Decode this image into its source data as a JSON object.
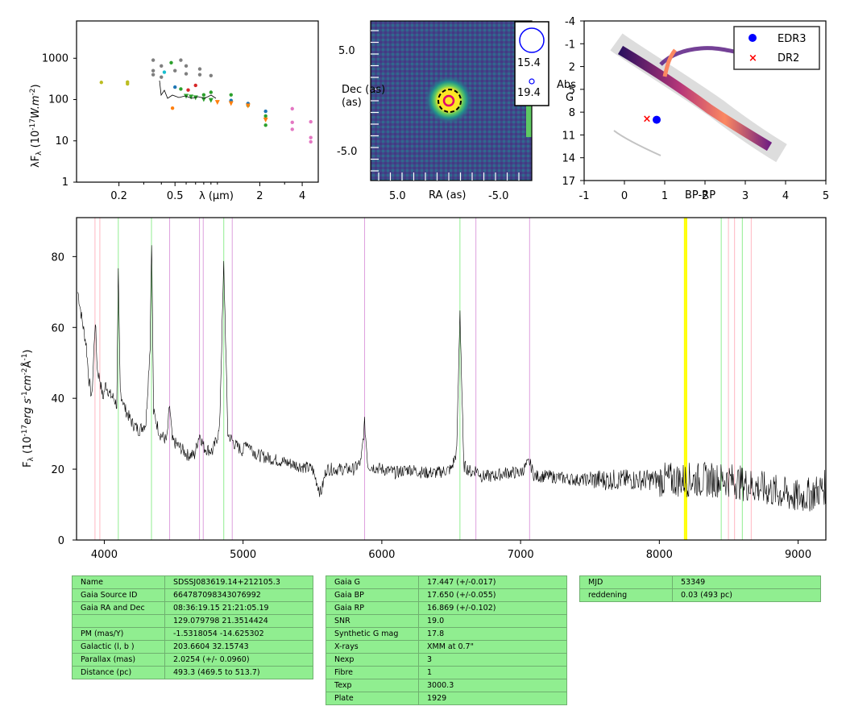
{
  "sed": {
    "ylabel": "λF_λ (10^-17 W.m^-2)",
    "xlabel": "λ (µm)",
    "yticks": [
      "1",
      "10",
      "100",
      "1000"
    ],
    "xticks": [
      "0.2",
      "0.5",
      "2",
      "4"
    ],
    "points": [
      {
        "x": 0.15,
        "y": 260,
        "c": "#bcbd22"
      },
      {
        "x": 0.23,
        "y": 240,
        "c": "#bcbd22"
      },
      {
        "x": 0.23,
        "y": 265,
        "c": "#bcbd22"
      },
      {
        "x": 0.35,
        "y": 900,
        "c": "#7f7f7f"
      },
      {
        "x": 0.35,
        "y": 500,
        "c": "#7f7f7f"
      },
      {
        "x": 0.35,
        "y": 400,
        "c": "#7f7f7f"
      },
      {
        "x": 0.4,
        "y": 650,
        "c": "#7f7f7f"
      },
      {
        "x": 0.4,
        "y": 350,
        "c": "#7f7f7f"
      },
      {
        "x": 0.42,
        "y": 460,
        "c": "#17becf"
      },
      {
        "x": 0.47,
        "y": 780,
        "c": "#2ca02c"
      },
      {
        "x": 0.5,
        "y": 500,
        "c": "#7f7f7f"
      },
      {
        "x": 0.5,
        "y": 200,
        "c": "#1f77b4"
      },
      {
        "x": 0.55,
        "y": 900,
        "c": "#7f7f7f"
      },
      {
        "x": 0.55,
        "y": 180,
        "c": "#2ca02c"
      },
      {
        "x": 0.6,
        "y": 650,
        "c": "#7f7f7f"
      },
      {
        "x": 0.6,
        "y": 420,
        "c": "#7f7f7f"
      },
      {
        "x": 0.62,
        "y": 170,
        "c": "#d62728"
      },
      {
        "x": 0.7,
        "y": 220,
        "c": "#d62728"
      },
      {
        "x": 0.75,
        "y": 550,
        "c": "#7f7f7f"
      },
      {
        "x": 0.75,
        "y": 400,
        "c": "#7f7f7f"
      },
      {
        "x": 0.8,
        "y": 130,
        "c": "#2ca02c"
      },
      {
        "x": 0.9,
        "y": 380,
        "c": "#7f7f7f"
      },
      {
        "x": 0.9,
        "y": 150,
        "c": "#2ca02c"
      },
      {
        "x": 0.48,
        "y": 62,
        "c": "#ff7f0e"
      },
      {
        "x": 1.25,
        "y": 130,
        "c": "#2ca02c"
      },
      {
        "x": 1.25,
        "y": 95,
        "c": "#1f77b4"
      },
      {
        "x": 1.65,
        "y": 80,
        "c": "#1f77b4"
      },
      {
        "x": 1.65,
        "y": 72,
        "c": "#2ca02c"
      },
      {
        "x": 2.2,
        "y": 52,
        "c": "#1f77b4"
      },
      {
        "x": 2.2,
        "y": 40,
        "c": "#2ca02c"
      },
      {
        "x": 2.2,
        "y": 24,
        "c": "#2ca02c"
      },
      {
        "x": 3.4,
        "y": 60,
        "c": "#e377c2"
      },
      {
        "x": 3.4,
        "y": 28,
        "c": "#e377c2"
      },
      {
        "x": 3.4,
        "y": 19,
        "c": "#e377c2"
      },
      {
        "x": 4.6,
        "y": 29,
        "c": "#e377c2"
      },
      {
        "x": 4.6,
        "y": 12,
        "c": "#e377c2"
      },
      {
        "x": 4.6,
        "y": 9.5,
        "c": "#e377c2"
      }
    ],
    "triangles": [
      {
        "x": 0.6,
        "y": 120,
        "c": "#2ca02c"
      },
      {
        "x": 0.65,
        "y": 115,
        "c": "#2ca02c"
      },
      {
        "x": 0.7,
        "y": 110,
        "c": "#2ca02c"
      },
      {
        "x": 0.8,
        "y": 100,
        "c": "#2ca02c"
      },
      {
        "x": 0.9,
        "y": 95,
        "c": "#2ca02c"
      },
      {
        "x": 1.0,
        "y": 85,
        "c": "#ff7f0e"
      },
      {
        "x": 1.25,
        "y": 80,
        "c": "#ff7f0e"
      },
      {
        "x": 1.65,
        "y": 70,
        "c": "#ff7f0e"
      },
      {
        "x": 2.2,
        "y": 32,
        "c": "#ff7f0e"
      }
    ]
  },
  "image": {
    "ylabel": "Dec\n(as)",
    "xlabel": "RA (as)",
    "yticks": [
      "5.0",
      "-5.0"
    ],
    "xticks": [
      "5.0",
      "-5.0"
    ],
    "legend_mags": [
      "15.4",
      "19.4"
    ]
  },
  "hr": {
    "xlabel": "BP-RP",
    "ylabel": "Abs\nG",
    "yticks": [
      "-4",
      "-1",
      "2",
      "5",
      "8",
      "11",
      "14",
      "17"
    ],
    "xticks": [
      "-1",
      "0",
      "1",
      "2",
      "3",
      "4",
      "5"
    ],
    "legend": [
      {
        "label": "EDR3",
        "color": "#0000ff"
      },
      {
        "label": "DR2",
        "color": "#ff0000"
      }
    ],
    "points": [
      {
        "name": "EDR3",
        "bp_rp": 0.8,
        "absg": 9.0,
        "color": "#0000ff"
      },
      {
        "name": "DR2",
        "bp_rp": 0.55,
        "absg": 8.8,
        "color": "#ff0000"
      }
    ]
  },
  "chart_data": {
    "type": "line",
    "xlabel": "",
    "ylabel": "F_λ (10^-17 erg s^-1 cm^-2 Å^-1)",
    "xlim": [
      3800,
      9200
    ],
    "ylim": [
      0,
      91
    ],
    "xticks": [
      "4000",
      "5000",
      "6000",
      "7000",
      "8000",
      "9000"
    ],
    "yticks": [
      "0",
      "20",
      "40",
      "60",
      "80"
    ],
    "series": [
      {
        "x": [
          3810,
          3840,
          3870,
          3890,
          3910,
          3935,
          3950,
          3970,
          3990,
          4010,
          4040,
          4070,
          4090,
          4101,
          4115,
          4150,
          4200,
          4250,
          4300,
          4330,
          4341,
          4355,
          4400,
          4450,
          4471,
          4490,
          4550,
          4600,
          4650,
          4686,
          4720,
          4780,
          4830,
          4861,
          4890,
          4940,
          5000,
          5020,
          5100,
          5200,
          5300,
          5400,
          5500,
          5560,
          5600,
          5700,
          5800,
          5850,
          5876,
          5900,
          6000,
          6100,
          6200,
          6300,
          6400,
          6500,
          6540,
          6563,
          6590,
          6650,
          6678,
          6720,
          6800,
          6900,
          7000,
          7065,
          7100,
          7200,
          7400,
          7600,
          7800,
          8000,
          8200,
          8400,
          8500,
          8600,
          8700,
          8800,
          8900,
          9000,
          9100,
          9200
        ],
        "y": [
          70,
          62,
          55,
          45,
          40,
          62,
          48,
          45,
          40,
          44,
          41,
          40,
          38,
          75,
          42,
          37,
          33,
          31,
          33,
          55,
          85,
          36,
          30,
          28,
          38,
          28,
          26,
          24,
          24,
          30,
          26,
          25,
          31,
          78,
          30,
          27,
          25,
          28,
          24,
          23,
          22,
          21,
          20,
          13,
          20,
          20,
          20,
          22,
          33,
          21,
          20,
          19,
          20,
          19,
          19,
          20,
          25,
          65,
          21,
          19,
          20,
          18,
          18,
          19,
          19,
          22,
          18,
          18,
          17,
          17,
          17,
          17,
          17,
          17,
          17,
          16,
          15,
          14,
          13,
          12,
          13,
          15
        ]
      }
    ],
    "lines": [
      {
        "x": 3933,
        "color": "#ffb6c1"
      },
      {
        "x": 3968,
        "color": "#ffb6c1"
      },
      {
        "x": 4101,
        "color": "#90ee90"
      },
      {
        "x": 4340,
        "color": "#90ee90"
      },
      {
        "x": 4471,
        "color": "#dda0dd"
      },
      {
        "x": 4686,
        "color": "#dda0dd"
      },
      {
        "x": 4713,
        "color": "#dda0dd"
      },
      {
        "x": 4861,
        "color": "#90ee90"
      },
      {
        "x": 4922,
        "color": "#dda0dd"
      },
      {
        "x": 5876,
        "color": "#dda0dd"
      },
      {
        "x": 6563,
        "color": "#90ee90"
      },
      {
        "x": 6678,
        "color": "#dda0dd"
      },
      {
        "x": 7065,
        "color": "#dda0dd"
      },
      {
        "x": 8183,
        "color": "#ffff00"
      },
      {
        "x": 8195,
        "color": "#ffff00"
      },
      {
        "x": 8446,
        "color": "#90ee90"
      },
      {
        "x": 8498,
        "color": "#ffb6c1"
      },
      {
        "x": 8542,
        "color": "#ffb6c1"
      },
      {
        "x": 8598,
        "color": "#90ee90"
      },
      {
        "x": 8662,
        "color": "#ffb6c1"
      }
    ]
  },
  "tables": {
    "left": [
      [
        "Name",
        "SDSSJ083619.14+212105.3"
      ],
      [
        "Gaia Source ID",
        "664787098343076992"
      ],
      [
        "Gaia RA and Dec",
        "08:36:19.15    21:21:05.19"
      ],
      [
        "",
        "129.079798    21.3514424"
      ],
      [
        "PM (mas/Y)",
        "-1.5318054    -14.625302"
      ],
      [
        "Galactic (l, b )",
        "203.6604    32.15743"
      ],
      [
        "Parallax (mas)",
        "2.0254 (+/- 0.0960)"
      ],
      [
        "Distance (pc)",
        "493.3 (469.5 to 513.7)"
      ]
    ],
    "middle": [
      [
        "Gaia G",
        "17.447 (+/-0.017)"
      ],
      [
        "Gaia BP",
        "17.650 (+/-0.055)"
      ],
      [
        "Gaia RP",
        "16.869 (+/-0.102)"
      ],
      [
        "SNR",
        "19.0"
      ],
      [
        "Synthetic G mag",
        "17.8"
      ],
      [
        "X-rays",
        "XMM at 0.7\""
      ],
      [
        "Nexp",
        "3"
      ],
      [
        "Fibre",
        "1"
      ],
      [
        "Texp",
        "3000.3"
      ],
      [
        "Plate",
        "1929"
      ]
    ],
    "right": [
      [
        "MJD",
        "53349"
      ],
      [
        "reddening",
        "0.03 (493 pc)"
      ]
    ]
  }
}
